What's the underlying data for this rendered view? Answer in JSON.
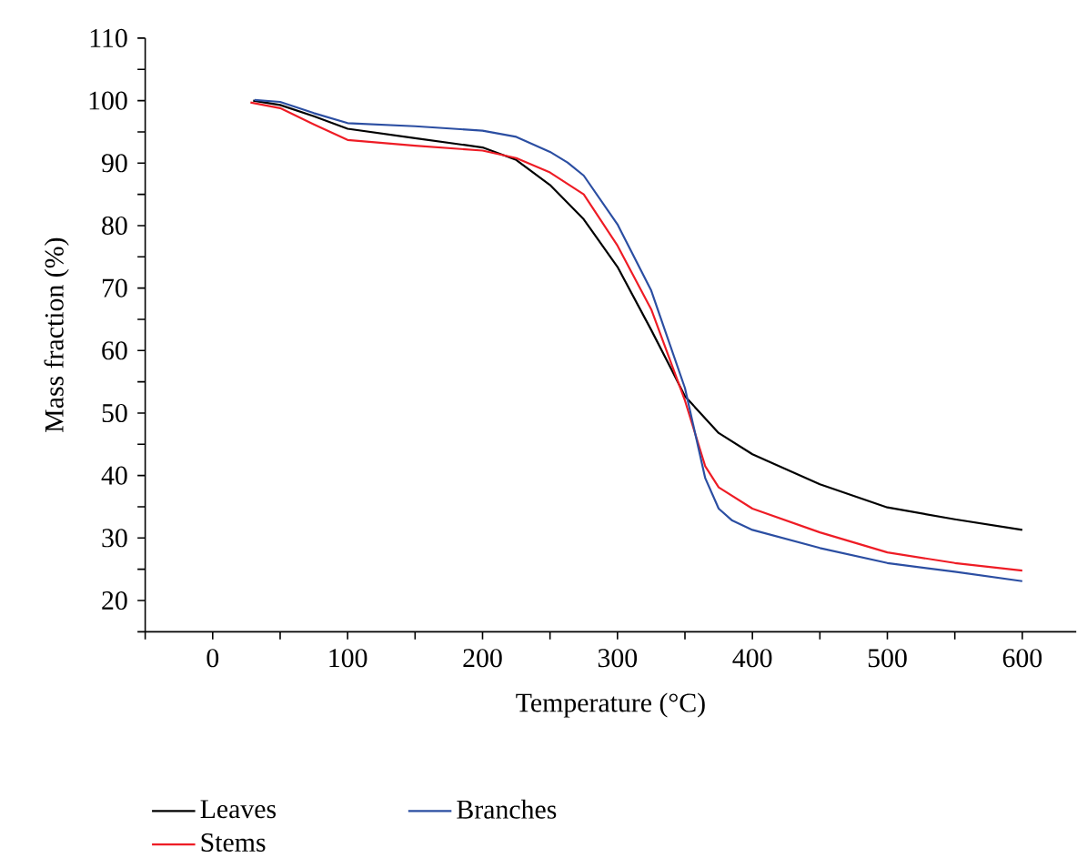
{
  "chart_data": {
    "type": "line",
    "xlabel": "Temperature (°C)",
    "ylabel": "Mass fraction (%)",
    "xlim": [
      -50,
      640
    ],
    "ylim": [
      15,
      110
    ],
    "xticks": [
      {
        "value": -50,
        "label": null
      },
      0,
      {
        "value": 50,
        "label": null
      },
      100,
      {
        "value": 150,
        "label": null
      },
      200,
      {
        "value": 250,
        "label": null
      },
      300,
      {
        "value": 350,
        "label": null
      },
      400,
      {
        "value": 450,
        "label": null
      },
      500,
      {
        "value": 550,
        "label": null
      },
      600
    ],
    "yticks": [
      {
        "value": 15,
        "label": null
      },
      20,
      {
        "value": 25,
        "label": null
      },
      30,
      {
        "value": 35,
        "label": null
      },
      40,
      {
        "value": 45,
        "label": null
      },
      50,
      {
        "value": 55,
        "label": null
      },
      60,
      {
        "value": 65,
        "label": null
      },
      70,
      {
        "value": 75,
        "label": null
      },
      80,
      {
        "value": 85,
        "label": null
      },
      90,
      {
        "value": 95,
        "label": null
      },
      100,
      {
        "value": 105,
        "label": null
      },
      110
    ],
    "legend": "bottom",
    "marker": "none",
    "line_style": "solid",
    "series": [
      {
        "name": "Leaves",
        "color": "#000000",
        "x": [
          30,
          50,
          75,
          100,
          150,
          200,
          225,
          250,
          275,
          300,
          325,
          340,
          350,
          375,
          400,
          450,
          500,
          550,
          600
        ],
        "values": [
          100,
          99.3,
          97.5,
          95.5,
          94,
          92.5,
          90.5,
          86.5,
          81,
          73.4,
          63.3,
          57,
          52.7,
          46.8,
          43.4,
          38.6,
          34.9,
          33,
          31.3
        ]
      },
      {
        "name": "Stems",
        "color": "#ee1c25",
        "x": [
          28,
          50,
          75,
          100,
          150,
          200,
          225,
          250,
          275,
          300,
          325,
          350,
          365,
          375,
          400,
          450,
          500,
          550,
          600
        ],
        "values": [
          99.7,
          98.8,
          96.2,
          93.7,
          92.8,
          92,
          90.8,
          88.5,
          85,
          76.8,
          66.6,
          52,
          41.5,
          38.1,
          34.7,
          30.9,
          27.7,
          26,
          24.8
        ]
      },
      {
        "name": "Branches",
        "color": "#2b4ea2",
        "x": [
          31,
          50,
          75,
          100,
          150,
          200,
          225,
          250,
          263,
          275,
          300,
          325,
          350,
          365,
          375,
          385,
          400,
          450,
          500,
          550,
          600
        ],
        "values": [
          100.1,
          99.8,
          98,
          96.4,
          95.9,
          95.2,
          94.2,
          91.8,
          90.1,
          88,
          80.2,
          69.6,
          54,
          39.6,
          34.7,
          32.8,
          31.3,
          28.4,
          26,
          24.6,
          23.1
        ]
      }
    ]
  }
}
